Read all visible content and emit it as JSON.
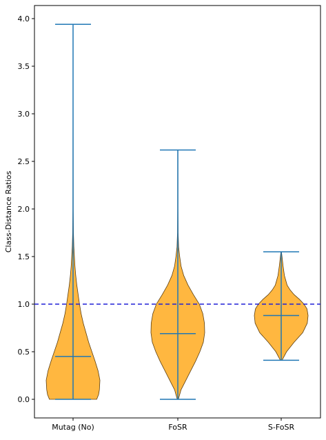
{
  "chart_data": {
    "type": "violin",
    "title": "",
    "xlabel": "",
    "ylabel": "Class-Distance Ratios",
    "ylim": [
      -0.19,
      4.12
    ],
    "yticks": [
      "0.0",
      "0.5",
      "1.0",
      "1.5",
      "2.0",
      "2.5",
      "3.0",
      "3.5",
      "4.0"
    ],
    "ytick_values": [
      0.0,
      0.5,
      1.0,
      1.5,
      2.0,
      2.5,
      3.0,
      3.5,
      4.0
    ],
    "categories": [
      "Mutag (No)",
      "FoSR",
      "S-FoSR"
    ],
    "grid": false,
    "reference_line": {
      "y": 1.0,
      "style": "dashed",
      "color": "#1f1fd6"
    },
    "colors": {
      "body": "#ffb740",
      "edge": "#5a3d10",
      "lines": "#1f77b4"
    },
    "violins": [
      {
        "name": "Mutag (No)",
        "min": 0.0,
        "max": 3.94,
        "median": 0.45,
        "profile": [
          [
            0.0,
            0.88
          ],
          [
            0.05,
            0.95
          ],
          [
            0.1,
            0.98
          ],
          [
            0.2,
            1.0
          ],
          [
            0.3,
            0.93
          ],
          [
            0.4,
            0.82
          ],
          [
            0.5,
            0.7
          ],
          [
            0.6,
            0.58
          ],
          [
            0.7,
            0.48
          ],
          [
            0.8,
            0.38
          ],
          [
            0.9,
            0.3
          ],
          [
            1.0,
            0.24
          ],
          [
            1.1,
            0.19
          ],
          [
            1.2,
            0.14
          ],
          [
            1.3,
            0.1
          ],
          [
            1.4,
            0.07
          ],
          [
            1.5,
            0.05
          ],
          [
            1.6,
            0.03
          ],
          [
            1.75,
            0.015
          ],
          [
            2.0,
            0.006
          ],
          [
            3.0,
            0.003
          ],
          [
            3.94,
            0.002
          ]
        ]
      },
      {
        "name": "FoSR",
        "min": 0.0,
        "max": 2.62,
        "median": 0.69,
        "profile": [
          [
            0.0,
            0.02
          ],
          [
            0.1,
            0.12
          ],
          [
            0.2,
            0.3
          ],
          [
            0.3,
            0.48
          ],
          [
            0.4,
            0.66
          ],
          [
            0.5,
            0.82
          ],
          [
            0.6,
            0.95
          ],
          [
            0.7,
            1.0
          ],
          [
            0.8,
            0.99
          ],
          [
            0.9,
            0.93
          ],
          [
            1.0,
            0.8
          ],
          [
            1.1,
            0.58
          ],
          [
            1.2,
            0.38
          ],
          [
            1.3,
            0.22
          ],
          [
            1.4,
            0.12
          ],
          [
            1.5,
            0.07
          ],
          [
            1.6,
            0.03
          ],
          [
            1.75,
            0.012
          ],
          [
            2.0,
            0.006
          ],
          [
            2.62,
            0.004
          ]
        ]
      },
      {
        "name": "S-FoSR",
        "min": 0.41,
        "max": 1.55,
        "median": 0.88,
        "profile": [
          [
            0.41,
            0.03
          ],
          [
            0.5,
            0.2
          ],
          [
            0.6,
            0.48
          ],
          [
            0.7,
            0.8
          ],
          [
            0.8,
            0.97
          ],
          [
            0.88,
            1.0
          ],
          [
            0.95,
            0.96
          ],
          [
            1.0,
            0.85
          ],
          [
            1.05,
            0.68
          ],
          [
            1.1,
            0.48
          ],
          [
            1.15,
            0.33
          ],
          [
            1.2,
            0.22
          ],
          [
            1.3,
            0.12
          ],
          [
            1.4,
            0.07
          ],
          [
            1.5,
            0.03
          ],
          [
            1.55,
            0.01
          ]
        ]
      }
    ]
  }
}
